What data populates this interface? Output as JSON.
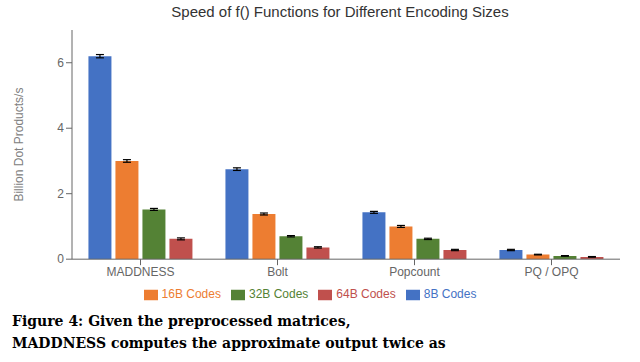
{
  "chart_data": {
    "type": "bar",
    "title": "Speed of f() Functions for Different Encoding Sizes",
    "ylabel": "Billion Dot Products/s",
    "categories": [
      "MADDNESS",
      "Bolt",
      "Popcount",
      "PQ / OPQ"
    ],
    "series": [
      {
        "name": "8B Codes",
        "color": "#4472c4",
        "values": [
          6.2,
          2.75,
          1.43,
          0.28
        ],
        "errors": [
          0.05,
          0.04,
          0.03,
          0.02
        ]
      },
      {
        "name": "16B Codes",
        "color": "#ed7d31",
        "values": [
          3.0,
          1.38,
          1.0,
          0.14
        ],
        "errors": [
          0.04,
          0.03,
          0.03,
          0.01
        ]
      },
      {
        "name": "32B Codes",
        "color": "#548235",
        "values": [
          1.52,
          0.7,
          0.62,
          0.1
        ],
        "errors": [
          0.03,
          0.02,
          0.02,
          0.01
        ]
      },
      {
        "name": "64B Codes",
        "color": "#c0504d",
        "values": [
          0.62,
          0.36,
          0.28,
          0.07
        ],
        "errors": [
          0.03,
          0.02,
          0.02,
          0.01
        ]
      }
    ],
    "ylim": [
      0,
      7
    ],
    "yticks": [
      0,
      2,
      4,
      6
    ],
    "grid": false,
    "legend": "bottom",
    "annotations": [
      "Figure 4: Given the preprocessed matrices,",
      "MADDNESS computes the approximate output twice as"
    ]
  }
}
